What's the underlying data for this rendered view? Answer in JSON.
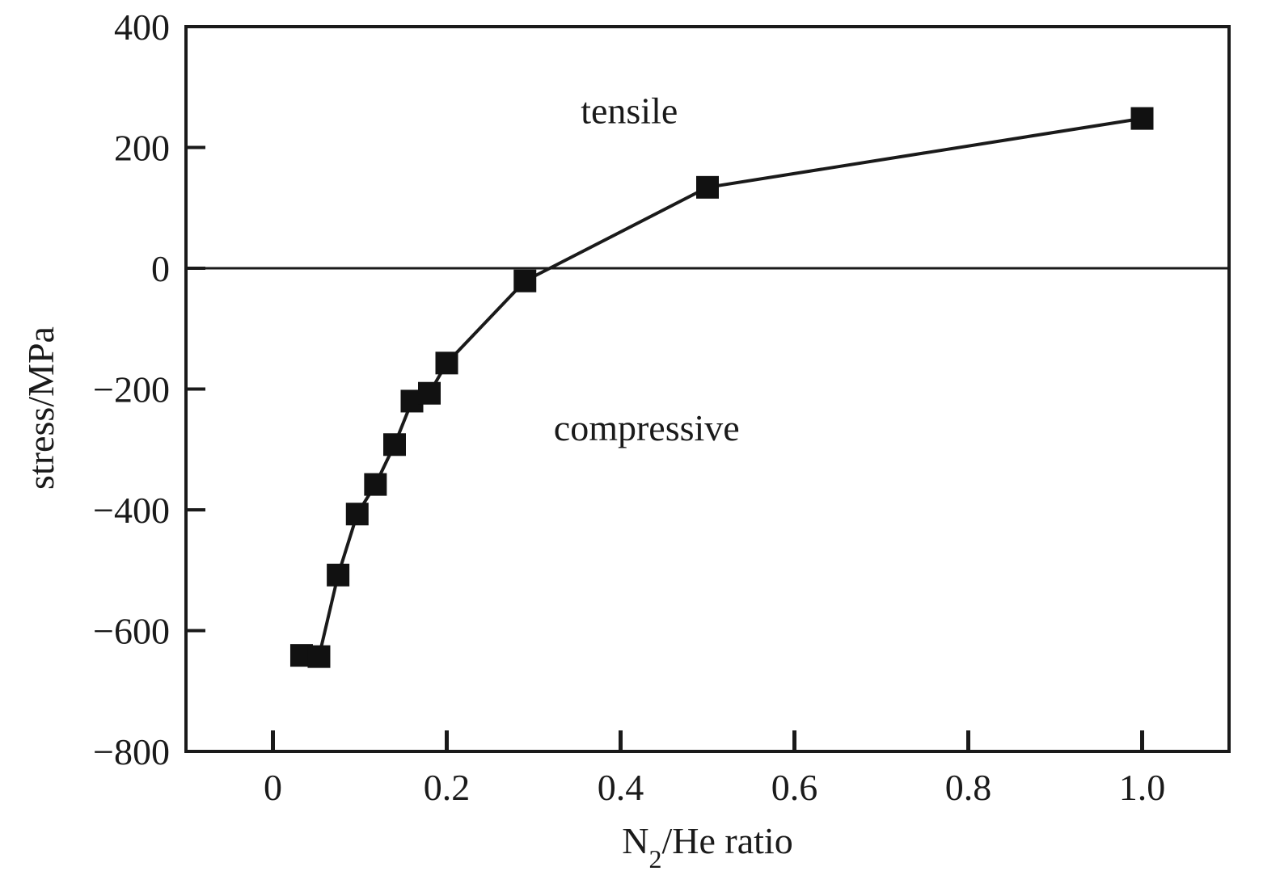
{
  "chart_data": {
    "type": "line",
    "title": "",
    "xlabel": {
      "base": "N",
      "sub": "2",
      "rest": "/He ratio"
    },
    "ylabel": "stress/MPa",
    "xlim": [
      -0.1,
      1.1
    ],
    "ylim": [
      -800,
      400
    ],
    "x_ticks": [
      0,
      0.2,
      0.4,
      0.6,
      0.8,
      1.0
    ],
    "x_tick_labels": [
      "0",
      "0.2",
      "0.4",
      "0.6",
      "0.8",
      "1.0"
    ],
    "y_ticks": [
      400,
      200,
      0,
      -200,
      -400,
      -600,
      -800
    ],
    "y_tick_labels": [
      "400",
      "200",
      "0",
      "−200",
      "−400",
      "−600",
      "−800"
    ],
    "zero_line": 0,
    "grid": false,
    "legend": "none",
    "annotations": [
      {
        "text": "tensile",
        "x": 0.41,
        "y": 240
      },
      {
        "text": "compressive",
        "x": 0.43,
        "y": -285
      }
    ],
    "series": [
      {
        "marker": "square",
        "color": "#111111",
        "points": [
          {
            "x": 0.033,
            "y": -641
          },
          {
            "x": 0.053,
            "y": -643
          },
          {
            "x": 0.075,
            "y": -508
          },
          {
            "x": 0.097,
            "y": -407
          },
          {
            "x": 0.118,
            "y": -358
          },
          {
            "x": 0.14,
            "y": -292
          },
          {
            "x": 0.16,
            "y": -220
          },
          {
            "x": 0.18,
            "y": -207
          },
          {
            "x": 0.2,
            "y": -157
          },
          {
            "x": 0.29,
            "y": -21
          },
          {
            "x": 0.5,
            "y": 134
          },
          {
            "x": 1.0,
            "y": 248
          }
        ]
      }
    ]
  }
}
